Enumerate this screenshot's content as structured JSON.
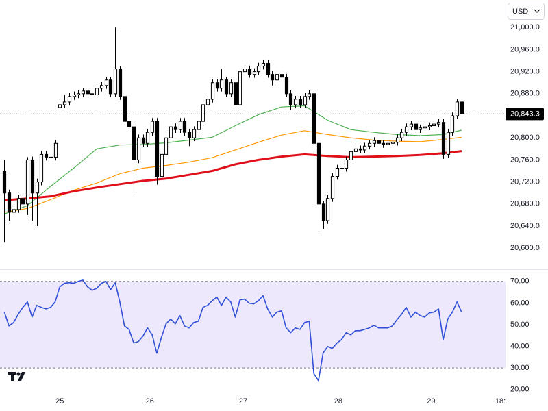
{
  "chart_data": [
    {
      "type": "candlestick",
      "currency": "USD",
      "x": [
        0,
        1,
        2,
        3,
        4,
        5,
        6,
        7,
        8,
        9,
        10,
        11,
        12,
        13,
        14,
        15,
        16,
        17,
        18,
        19,
        20,
        21,
        22,
        23,
        24,
        25,
        26,
        27,
        28,
        29,
        30,
        31,
        32,
        33,
        34,
        35,
        36,
        37,
        38,
        39,
        40,
        41,
        42,
        43,
        44,
        45,
        46,
        47,
        48,
        49,
        50,
        51,
        52,
        53,
        54,
        55,
        56,
        57,
        58,
        59,
        60,
        61,
        62,
        63,
        64,
        65,
        66,
        67,
        68,
        69,
        70,
        71,
        72,
        73,
        74,
        75,
        76,
        77,
        78,
        79,
        80,
        81,
        82,
        83,
        84,
        85,
        86,
        87,
        88,
        89,
        90,
        91,
        92,
        93,
        94,
        95,
        96,
        97,
        98,
        99
      ],
      "open": [
        20740,
        20700,
        20665,
        20670,
        20690,
        20680,
        20760,
        20700,
        20720,
        20770,
        20765,
        20765,
        20855,
        20860,
        20865,
        20875,
        20878,
        20880,
        20885,
        20880,
        20878,
        20890,
        20895,
        20905,
        20880,
        20925,
        20875,
        20830,
        20820,
        20760,
        20800,
        20790,
        20810,
        20830,
        20730,
        20770,
        20800,
        20820,
        20815,
        20830,
        20810,
        20800,
        20815,
        20830,
        20860,
        20870,
        20900,
        20890,
        20905,
        20880,
        20900,
        20860,
        20920,
        20925,
        20915,
        20920,
        20930,
        20935,
        20915,
        20905,
        20915,
        20910,
        20880,
        20860,
        20870,
        20860,
        20875,
        20880,
        20790,
        20680,
        20650,
        20690,
        20730,
        20745,
        20745,
        20760,
        20775,
        20780,
        20778,
        20785,
        20790,
        20795,
        20790,
        20788,
        20790,
        20792,
        20800,
        20810,
        20820,
        20825,
        20815,
        20818,
        20820,
        20822,
        20825,
        20828,
        20770,
        20810,
        20840,
        20865
      ],
      "high": [
        20760,
        20706,
        20676,
        20696,
        20696,
        20765,
        20766,
        20726,
        20776,
        20776,
        20771,
        20796,
        20870,
        20878,
        20881,
        20884,
        20886,
        20891,
        20891,
        20886,
        20896,
        20901,
        20911,
        20911,
        21000,
        20930,
        20881,
        20836,
        20826,
        20806,
        20806,
        20816,
        20836,
        20836,
        20776,
        20806,
        20826,
        20826,
        20836,
        20836,
        20816,
        20821,
        20836,
        20866,
        20876,
        20906,
        20906,
        20925,
        20911,
        20906,
        20906,
        20926,
        20931,
        20931,
        20926,
        20936,
        20941,
        20941,
        20921,
        20921,
        20921,
        20916,
        20886,
        20876,
        20876,
        20881,
        20886,
        20886,
        20796,
        20686,
        20696,
        20736,
        20751,
        20751,
        20766,
        20781,
        20786,
        20786,
        20791,
        20796,
        20801,
        20801,
        20796,
        20796,
        20798,
        20806,
        20816,
        20826,
        20831,
        20831,
        20824,
        20826,
        20828,
        20831,
        20834,
        20834,
        20816,
        20846,
        20871,
        20870
      ],
      "low": [
        20610,
        20650,
        20659,
        20664,
        20674,
        20660,
        20650,
        20640,
        20714,
        20759,
        20759,
        20759,
        20849,
        20854,
        20859,
        20869,
        20872,
        20874,
        20874,
        20872,
        20872,
        20884,
        20889,
        20874,
        20874,
        20869,
        20824,
        20814,
        20700,
        20754,
        20784,
        20784,
        20804,
        20715,
        20715,
        20764,
        20794,
        20809,
        20809,
        20804,
        20785,
        20794,
        20809,
        20824,
        20854,
        20864,
        20884,
        20884,
        20874,
        20874,
        20830,
        20854,
        20914,
        20909,
        20909,
        20914,
        20924,
        20909,
        20895,
        20899,
        20904,
        20874,
        20850,
        20854,
        20854,
        20854,
        20869,
        20780,
        20630,
        20635,
        20644,
        20684,
        20724,
        20739,
        20739,
        20754,
        20769,
        20772,
        20772,
        20779,
        20784,
        20784,
        20782,
        20782,
        20784,
        20786,
        20794,
        20804,
        20814,
        20809,
        20809,
        20812,
        20814,
        20816,
        20819,
        20762,
        20764,
        20804,
        20834,
        20837
      ],
      "close": [
        20700,
        20665,
        20670,
        20690,
        20680,
        20760,
        20700,
        20720,
        20770,
        20765,
        20765,
        20790,
        20860,
        20865,
        20875,
        20878,
        20880,
        20885,
        20880,
        20878,
        20890,
        20895,
        20905,
        20880,
        20925,
        20875,
        20830,
        20820,
        20760,
        20800,
        20790,
        20810,
        20830,
        20730,
        20770,
        20800,
        20820,
        20815,
        20830,
        20810,
        20800,
        20815,
        20830,
        20860,
        20870,
        20900,
        20890,
        20905,
        20880,
        20900,
        20860,
        20920,
        20925,
        20915,
        20920,
        20930,
        20935,
        20915,
        20905,
        20915,
        20910,
        20880,
        20860,
        20870,
        20860,
        20875,
        20880,
        20790,
        20680,
        20650,
        20690,
        20730,
        20745,
        20745,
        20760,
        20775,
        20780,
        20778,
        20785,
        20790,
        20795,
        20790,
        20788,
        20790,
        20792,
        20800,
        20810,
        20820,
        20825,
        20815,
        20818,
        20820,
        20822,
        20825,
        20828,
        20770,
        20810,
        20840,
        20865,
        20843.3
      ],
      "up_color": "#ffffff",
      "down_color": "#000000",
      "series": [
        {
          "color": "#4caf50",
          "x": [
            0,
            5,
            10,
            15,
            20,
            25,
            30,
            35,
            40,
            45,
            50,
            55,
            60,
            65,
            70,
            75,
            80,
            85,
            90,
            95,
            99
          ],
          "values": [
            20662,
            20677,
            20712,
            20745,
            20780,
            20787,
            20788,
            20791,
            20796,
            20801,
            20822,
            20842,
            20856,
            20858,
            20832,
            20815,
            20810,
            20806,
            20804,
            20806,
            20814
          ]
        },
        {
          "color": "#ff9800",
          "x": [
            0,
            5,
            10,
            15,
            20,
            25,
            30,
            35,
            40,
            45,
            50,
            55,
            60,
            65,
            70,
            75,
            80,
            85,
            90,
            95,
            99
          ],
          "values": [
            20665,
            20672,
            20688,
            20705,
            20718,
            20735,
            20745,
            20750,
            20756,
            20764,
            20778,
            20792,
            20805,
            20813,
            20806,
            20800,
            20796,
            20794,
            20793,
            20797,
            20801
          ]
        },
        {
          "color": "#e0101b",
          "x": [
            0,
            5,
            10,
            15,
            20,
            25,
            30,
            35,
            40,
            45,
            50,
            55,
            60,
            65,
            70,
            75,
            80,
            85,
            90,
            95,
            99
          ],
          "values": [
            20687,
            20690,
            20694,
            20703,
            20710,
            20716,
            20722,
            20726,
            20733,
            20740,
            20752,
            20760,
            20766,
            20770,
            20767,
            20765,
            20766,
            20767,
            20769,
            20772,
            20776
          ]
        }
      ],
      "current_price": {
        "value": 20843.3,
        "label": "20,843.3"
      },
      "xlim": [
        -0.5,
        108.5
      ],
      "ylim": [
        20563,
        21050
      ],
      "yticks": [
        {
          "value": 21000,
          "label": "21,000.0"
        },
        {
          "value": 20960,
          "label": "20,960.0"
        },
        {
          "value": 20920,
          "label": "20,920.0"
        },
        {
          "value": 20880,
          "label": "20,880.0"
        },
        {
          "value": 20840,
          "label": "20,840.0"
        },
        {
          "value": 20800,
          "label": "20,800.0"
        },
        {
          "value": 20760,
          "label": "20,760.0"
        },
        {
          "value": 20720,
          "label": "20,720.0"
        },
        {
          "value": 20680,
          "label": "20,680.0"
        },
        {
          "value": 20640,
          "label": "20,640.0"
        },
        {
          "value": 20600,
          "label": "20,600.0"
        }
      ]
    },
    {
      "type": "line",
      "x": [
        0,
        1,
        2,
        3,
        4,
        5,
        6,
        7,
        8,
        9,
        10,
        11,
        12,
        13,
        14,
        15,
        16,
        17,
        18,
        19,
        20,
        21,
        22,
        23,
        24,
        25,
        26,
        27,
        28,
        29,
        30,
        31,
        32,
        33,
        34,
        35,
        36,
        37,
        38,
        39,
        40,
        41,
        42,
        43,
        44,
        45,
        46,
        47,
        48,
        49,
        50,
        51,
        52,
        53,
        54,
        55,
        56,
        57,
        58,
        59,
        60,
        61,
        62,
        63,
        64,
        65,
        66,
        67,
        68,
        69,
        70,
        71,
        72,
        73,
        74,
        75,
        76,
        77,
        78,
        79,
        80,
        81,
        82,
        83,
        84,
        85,
        86,
        87,
        88,
        89,
        90,
        91,
        92,
        93,
        94,
        95,
        96,
        97,
        98,
        99
      ],
      "values": [
        55.8,
        49.4,
        51.0,
        54.8,
        58.0,
        60.5,
        53.5,
        58.9,
        58.0,
        57.3,
        58.0,
        60.5,
        67.5,
        69.1,
        69.4,
        69.1,
        70.0,
        70.6,
        67.5,
        65.9,
        66.8,
        69.1,
        70.0,
        66.2,
        69.4,
        60.5,
        49.4,
        47.8,
        41.5,
        42.2,
        44.7,
        48.5,
        45.3,
        36.8,
        44.1,
        50.4,
        52.6,
        50.4,
        54.2,
        49.4,
        48.5,
        51.0,
        51.6,
        58.0,
        58.9,
        61.1,
        62.7,
        58.9,
        62.7,
        60.5,
        53.5,
        61.5,
        61.8,
        59.9,
        59.6,
        61.1,
        63.4,
        57.3,
        53.5,
        55.8,
        56.4,
        48.5,
        46.3,
        48.5,
        47.8,
        51.0,
        51.6,
        27.3,
        24.1,
        36.8,
        39.9,
        39.0,
        41.5,
        43.1,
        46.3,
        45.3,
        47.2,
        47.2,
        47.8,
        48.5,
        49.7,
        48.5,
        48.5,
        48.5,
        49.4,
        52.3,
        54.8,
        58.0,
        53.5,
        55.8,
        54.2,
        53.5,
        55.4,
        55.8,
        57.3,
        43.1,
        52.6,
        55.8,
        60.5,
        55.8
      ],
      "color": "#2e4fd6",
      "band": [
        30,
        70
      ],
      "band_color": "#ede8fb",
      "xlim": [
        -0.5,
        108.5
      ],
      "xticks": [
        {
          "value": 12,
          "label": "25"
        },
        {
          "value": 31.5,
          "label": "26"
        },
        {
          "value": 51.7,
          "label": "27"
        },
        {
          "value": 72.3,
          "label": "28"
        },
        {
          "value": 92.4,
          "label": "29"
        },
        {
          "value": 107.4,
          "label": "18:"
        }
      ],
      "ylim": [
        18,
        75
      ],
      "yticks": [
        {
          "value": 70,
          "label": "70.00"
        },
        {
          "value": 60,
          "label": "60.00"
        },
        {
          "value": 50,
          "label": "50.00"
        },
        {
          "value": 40,
          "label": "40.00"
        },
        {
          "value": 30,
          "label": "30.00"
        },
        {
          "value": 20,
          "label": "20.00"
        }
      ]
    }
  ]
}
